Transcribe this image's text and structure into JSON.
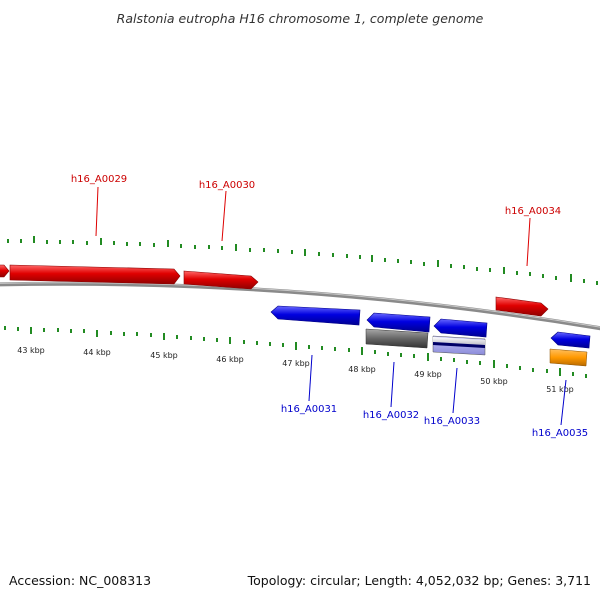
{
  "title": "Ralstonia eutropha H16 chromosome 1, complete genome",
  "footer": {
    "accession": "Accession: NC_008313",
    "topology": "Topology: circular; Length: 4,052,032 bp; Genes: 3,711"
  },
  "colors": {
    "forward": "#dd0000",
    "reverse": "#0000dd",
    "tick": "#228B22",
    "backbone": "#888888",
    "gray_feature": "#666666",
    "orange_feature": "#ff9900"
  },
  "kbp_labels": [
    "43 kbp",
    "44 kbp",
    "45 kbp",
    "46 kbp",
    "47 kbp",
    "48 kbp",
    "49 kbp",
    "50 kbp",
    "51 kbp"
  ],
  "gene_labels": {
    "h16_A0029": "h16_A0029",
    "h16_A0030": "h16_A0030",
    "h16_A0034": "h16_A0034",
    "h16_A0031": "h16_A0031",
    "h16_A0032": "h16_A0032",
    "h16_A0033": "h16_A0033",
    "h16_A0035": "h16_A0035"
  }
}
